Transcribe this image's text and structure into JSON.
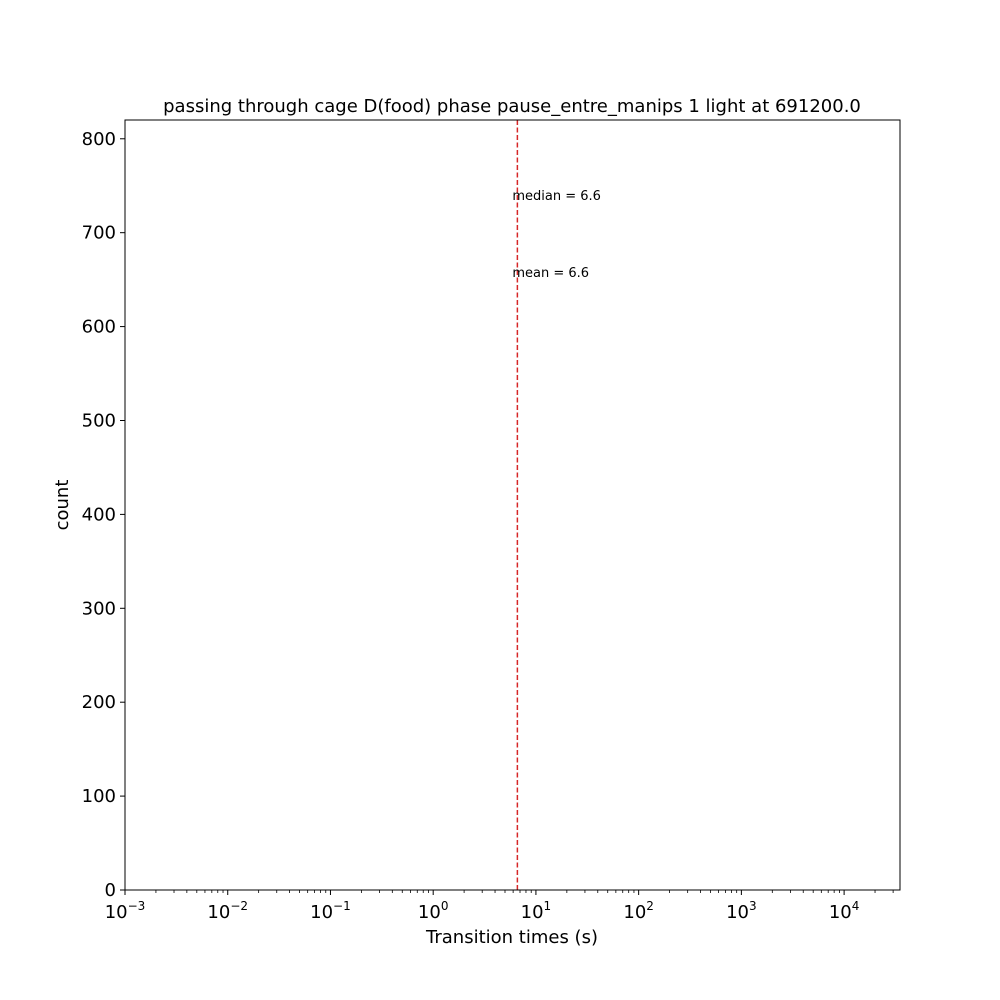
{
  "chart_data": {
    "type": "histogram",
    "title": "passing through cage D(food) phase pause_entre_manips 1 light at 691200.0",
    "xlabel": "Transition times (s)",
    "ylabel": "count",
    "xscale": "log",
    "xlim": [
      0.001,
      35000
    ],
    "ylim": [
      0,
      820
    ],
    "x_ticks": [
      {
        "value": 0.001,
        "base": "10",
        "exp": "−3"
      },
      {
        "value": 0.01,
        "base": "10",
        "exp": "−2"
      },
      {
        "value": 0.1,
        "base": "10",
        "exp": "−1"
      },
      {
        "value": 1,
        "base": "10",
        "exp": "0"
      },
      {
        "value": 10,
        "base": "10",
        "exp": "1"
      },
      {
        "value": 100,
        "base": "10",
        "exp": "2"
      },
      {
        "value": 1000,
        "base": "10",
        "exp": "3"
      },
      {
        "value": 10000,
        "base": "10",
        "exp": "4"
      }
    ],
    "y_ticks": [
      0,
      100,
      200,
      300,
      400,
      500,
      600,
      700,
      800
    ],
    "vline": {
      "x": 6.6,
      "color": "#d62728",
      "style": "dashed"
    },
    "annotations": [
      {
        "text": "median =  6.6",
        "x": 6.6,
        "y": 740
      },
      {
        "text": "mean =  6.6",
        "x": 6.6,
        "y": 658
      }
    ],
    "grid": false,
    "legend": "none"
  }
}
